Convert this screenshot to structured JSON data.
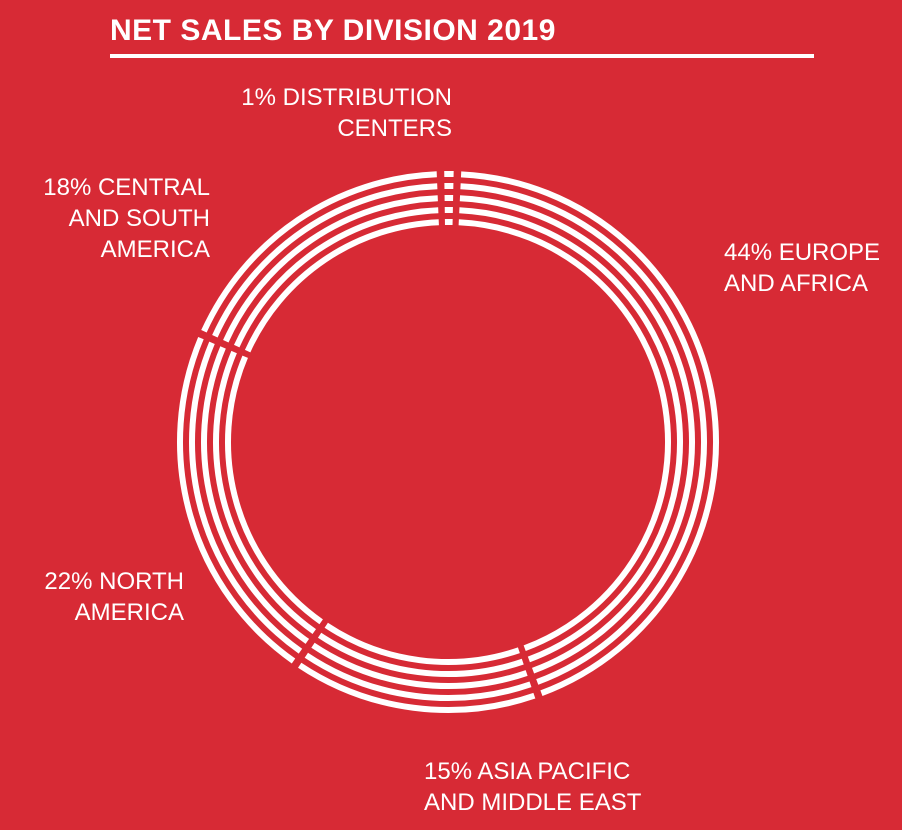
{
  "chart_data": {
    "type": "pie",
    "style": "donut-striped",
    "title": "NET SALES BY DIVISION 2019",
    "slices": [
      {
        "name": "EUROPE AND AFRICA",
        "value": 44,
        "label_lines": [
          "44% EUROPE",
          "AND AFRICA"
        ]
      },
      {
        "name": "ASIA PACIFIC AND MIDDLE EAST",
        "value": 15,
        "label_lines": [
          "15% ASIA PACIFIC",
          "AND MIDDLE EAST"
        ]
      },
      {
        "name": "NORTH AMERICA",
        "value": 22,
        "label_lines": [
          "22% NORTH",
          "AMERICA"
        ]
      },
      {
        "name": "CENTRAL AND SOUTH AMERICA",
        "value": 18,
        "label_lines": [
          "18% CENTRAL",
          "AND SOUTH",
          "AMERICA"
        ]
      },
      {
        "name": "DISTRIBUTION CENTERS",
        "value": 1,
        "label_lines": [
          "1% DISTRIBUTION",
          "CENTERS"
        ]
      }
    ]
  },
  "colors": {
    "background": "#d72a35",
    "foreground": "#ffffff"
  }
}
